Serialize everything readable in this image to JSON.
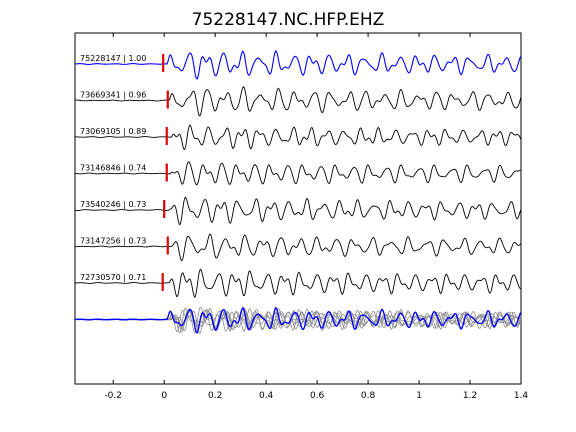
{
  "chart_data": {
    "type": "line",
    "title": "75228147.NC.HFP.EHZ",
    "xlabel": "",
    "ylabel": "",
    "xlim": [
      -0.35,
      1.4
    ],
    "x_ticks": [
      "-0.2",
      "0",
      "0.2",
      "0.4",
      "0.6",
      "0.8",
      "1",
      "1.2",
      "1.4"
    ],
    "x_tick_values": [
      -0.2,
      0,
      0.2,
      0.4,
      0.6,
      0.8,
      1.0,
      1.2,
      1.4
    ],
    "grid": false,
    "colors": {
      "master": "#0000ff",
      "trace": "#000000",
      "overlay": "#8c8c8c",
      "pick": "#dd0000"
    },
    "series": [
      {
        "name": "75228147 | 1.00",
        "pick_time": -0.004,
        "onset": 0.01,
        "f1": 14.5,
        "f2": 24.0,
        "amp": 1.0,
        "master": true
      },
      {
        "name": "73669341 | 0.96",
        "pick_time": 0.014,
        "onset": 0.02,
        "f1": 14.5,
        "f2": 21.0,
        "amp": 1.0,
        "master": false
      },
      {
        "name": "73069105 | 0.89",
        "pick_time": 0.01,
        "onset": 0.03,
        "f1": 15.0,
        "f2": 27.0,
        "amp": 0.85,
        "master": false
      },
      {
        "name": "73146846 | 0.74",
        "pick_time": 0.01,
        "onset": 0.025,
        "f1": 15.5,
        "f2": 23.0,
        "amp": 0.9,
        "master": false
      },
      {
        "name": "73540246 | 0.73",
        "pick_time": 0.0,
        "onset": 0.02,
        "f1": 15.0,
        "f2": 25.0,
        "amp": 0.95,
        "master": false
      },
      {
        "name": "73147256 | 0.73",
        "pick_time": 0.014,
        "onset": 0.03,
        "f1": 14.0,
        "f2": 22.0,
        "amp": 0.9,
        "master": false
      },
      {
        "name": "72730570 | 0.71",
        "pick_time": -0.006,
        "onset": 0.02,
        "f1": 15.5,
        "f2": 26.0,
        "amp": 1.0,
        "master": false
      }
    ]
  }
}
